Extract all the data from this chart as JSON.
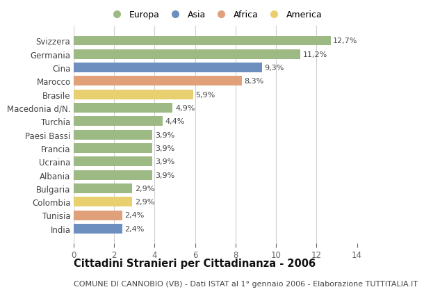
{
  "categories": [
    "India",
    "Tunisia",
    "Colombia",
    "Bulgaria",
    "Albania",
    "Ucraina",
    "Francia",
    "Paesi Bassi",
    "Turchia",
    "Macedonia d/N.",
    "Brasile",
    "Marocco",
    "Cina",
    "Germania",
    "Svizzera"
  ],
  "values": [
    2.4,
    2.4,
    2.9,
    2.9,
    3.9,
    3.9,
    3.9,
    3.9,
    4.4,
    4.9,
    5.9,
    8.3,
    9.3,
    11.2,
    12.7
  ],
  "bar_colors": [
    "#6d8fc0",
    "#e0a07a",
    "#e8d070",
    "#9eba84",
    "#9eba84",
    "#9eba84",
    "#9eba84",
    "#9eba84",
    "#9eba84",
    "#9eba84",
    "#e8d070",
    "#e0a07a",
    "#6d8fc0",
    "#9eba84",
    "#9eba84"
  ],
  "title": "Cittadini Stranieri per Cittadinanza - 2006",
  "subtitle": "COMUNE DI CANNOBIO (VB) - Dati ISTAT al 1° gennaio 2006 - Elaborazione TUTTITALIA.IT",
  "xlim": [
    0,
    14
  ],
  "xticks": [
    0,
    2,
    4,
    6,
    8,
    10,
    12,
    14
  ],
  "legend_labels": [
    "Europa",
    "Asia",
    "Africa",
    "America"
  ],
  "legend_colors": [
    "#9eba84",
    "#6d8fc0",
    "#e0a07a",
    "#e8d070"
  ],
  "background_color": "#ffffff",
  "grid_color": "#d0d0d0",
  "bar_height": 0.72,
  "label_fontsize": 8,
  "ytick_fontsize": 8.5,
  "xtick_fontsize": 8.5,
  "title_fontsize": 10.5,
  "subtitle_fontsize": 8
}
